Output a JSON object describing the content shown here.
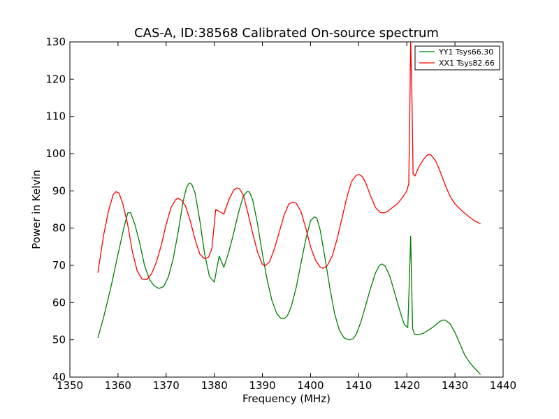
{
  "chart_data": {
    "type": "line",
    "title": "CAS-A, ID:38568 Calibrated On-source spectrum",
    "xlabel": "Frequency (MHz)",
    "ylabel": "Power in Kelvin",
    "xlim": [
      1350,
      1440
    ],
    "ylim": [
      40,
      130
    ],
    "xticks": [
      1350,
      1360,
      1370,
      1380,
      1390,
      1400,
      1410,
      1420,
      1430,
      1440
    ],
    "yticks": [
      40,
      50,
      60,
      70,
      80,
      90,
      100,
      110,
      120,
      130
    ],
    "grid": false,
    "legend_position": "top-right",
    "series": [
      {
        "name": "YY1 Tsys66.30",
        "color": "#008000",
        "x": [
          1355.8,
          1357,
          1358.5,
          1360,
          1361.2,
          1362,
          1362.6,
          1363.5,
          1364.5,
          1365.5,
          1366.5,
          1367.5,
          1368.5,
          1369.5,
          1370.5,
          1371.5,
          1372.5,
          1373.5,
          1374.2,
          1374.8,
          1375.3,
          1376,
          1377,
          1378,
          1379,
          1380,
          1381,
          1382,
          1383,
          1384,
          1385,
          1386,
          1386.8,
          1387.3,
          1388,
          1389,
          1390,
          1391,
          1392,
          1393,
          1393.8,
          1394.5,
          1395.2,
          1396,
          1397,
          1398,
          1399,
          1400,
          1400.8,
          1401.3,
          1402,
          1403,
          1404,
          1405,
          1406,
          1407,
          1408,
          1408.8,
          1409.5,
          1410.5,
          1411.5,
          1412.5,
          1413.5,
          1414.3,
          1414.8,
          1415.5,
          1416.5,
          1417.5,
          1418.5,
          1419.5,
          1420.2,
          1420.5,
          1420.8,
          1421.2,
          1421.6,
          1422.5,
          1423.5,
          1424.5,
          1425.5,
          1426.5,
          1427.3,
          1428,
          1429,
          1430,
          1431,
          1432,
          1433,
          1434,
          1435.3
        ],
        "y": [
          50.5,
          56,
          64,
          73,
          80,
          84,
          84.2,
          81,
          76,
          70,
          66.3,
          64.5,
          63.8,
          64.3,
          67,
          72,
          79,
          87,
          90.8,
          92.1,
          91.8,
          89.5,
          82,
          73,
          67,
          65.5,
          72.5,
          69.5,
          73.5,
          78.5,
          84,
          88.5,
          89.8,
          89.7,
          87.5,
          81,
          73,
          66,
          60.5,
          57,
          55.8,
          55.7,
          56.5,
          59,
          64,
          70.5,
          77,
          82,
          83,
          82.7,
          79.5,
          72,
          64,
          57,
          52.5,
          50.5,
          50,
          50.3,
          51.5,
          55,
          59.5,
          64,
          68,
          70,
          70.4,
          69.8,
          67,
          62.5,
          58,
          54,
          53.3,
          65,
          77.8,
          53,
          51.5,
          51.4,
          51.8,
          52.6,
          53.5,
          54.6,
          55.3,
          55.3,
          54.3,
          52,
          49,
          46,
          44,
          42.5,
          40.7
        ]
      },
      {
        "name": "XX1 Tsys82.66",
        "color": "#ff0000",
        "x": [
          1355.8,
          1357,
          1358,
          1359,
          1359.6,
          1360.2,
          1361,
          1362,
          1363,
          1364,
          1365,
          1366,
          1367,
          1368,
          1369,
          1370,
          1371,
          1372,
          1372.5,
          1373.2,
          1374,
          1375,
          1376,
          1377,
          1378,
          1378.8,
          1379.5,
          1380.3,
          1381,
          1382,
          1383,
          1384,
          1384.7,
          1385.2,
          1386,
          1387,
          1388,
          1389,
          1390,
          1390.6,
          1391.5,
          1392.5,
          1393.5,
          1394.5,
          1395.5,
          1396.4,
          1397,
          1398,
          1399,
          1400,
          1401,
          1402,
          1402.6,
          1403.5,
          1404.5,
          1405.5,
          1406.5,
          1407.5,
          1408.5,
          1409.5,
          1410.2,
          1410.8,
          1411.5,
          1412.5,
          1413.5,
          1414.5,
          1415.3,
          1416,
          1417,
          1418,
          1419,
          1420,
          1420.4,
          1420.6,
          1420.8,
          1421,
          1421.3,
          1421.7,
          1422.5,
          1423.5,
          1424.3,
          1425,
          1426,
          1427,
          1428,
          1429,
          1430,
          1431,
          1432,
          1433,
          1434,
          1435.3
        ],
        "y": [
          68,
          78,
          84.5,
          89,
          89.8,
          89.4,
          86.5,
          81,
          73.5,
          68.5,
          66.3,
          66.2,
          67.8,
          71,
          75.5,
          81,
          85.5,
          87.7,
          88,
          87.5,
          86,
          82,
          77,
          73,
          71.8,
          72.2,
          74.5,
          85,
          84.5,
          83.8,
          87.5,
          90.2,
          90.8,
          90.6,
          89,
          84,
          78.5,
          73.5,
          70.2,
          69.9,
          71,
          74.5,
          79,
          83.5,
          86.5,
          87,
          86.7,
          84.5,
          80,
          75,
          71.5,
          69.5,
          69.2,
          70,
          72.5,
          77,
          82.5,
          88,
          92.5,
          94.2,
          94.4,
          93.8,
          92,
          88.5,
          85.5,
          84.2,
          84.1,
          84.5,
          85.5,
          86.5,
          88,
          90,
          92,
          110,
          130,
          120,
          94.5,
          94,
          96.5,
          98.5,
          99.7,
          99.7,
          98,
          95,
          91.5,
          88.5,
          86.5,
          85.2,
          84,
          83,
          82,
          81.2
        ]
      }
    ]
  }
}
